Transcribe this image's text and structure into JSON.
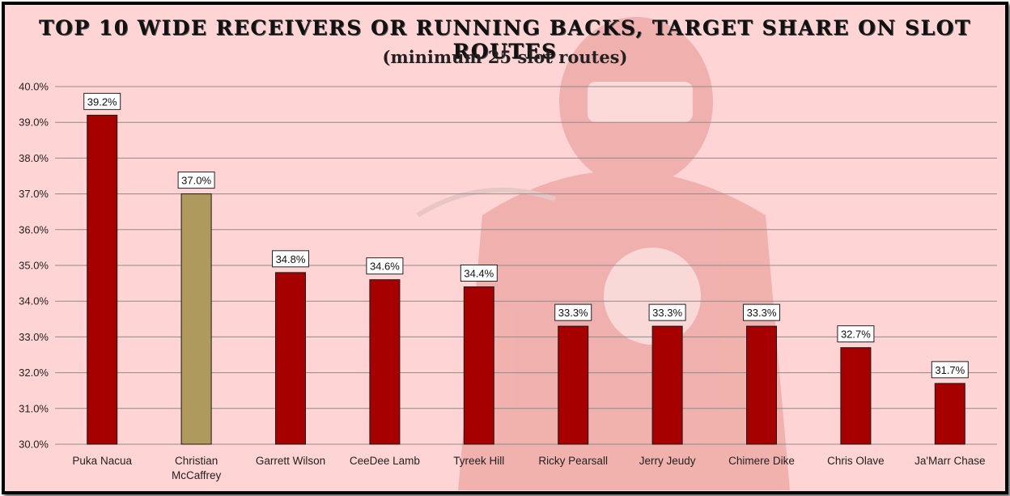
{
  "chart_data": {
    "type": "bar",
    "title": "TOP 10 WIDE RECEIVERS OR RUNNING BACKS, TARGET SHARE ON SLOT ROUTES",
    "subtitle": "(minimum 25 slot routes)",
    "categories": [
      [
        "Puka Nacua"
      ],
      [
        "Christian",
        "McCaffrey"
      ],
      [
        "Garrett Wilson"
      ],
      [
        "CeeDee Lamb"
      ],
      [
        "Tyreek Hill"
      ],
      [
        "Ricky Pearsall"
      ],
      [
        "Jerry Jeudy"
      ],
      [
        "Chimere Dike"
      ],
      [
        "Chris Olave"
      ],
      [
        "Ja'Marr Chase"
      ]
    ],
    "values": [
      39.2,
      37.0,
      34.8,
      34.6,
      34.4,
      33.3,
      33.3,
      33.3,
      32.7,
      31.7
    ],
    "data_labels": [
      "39.2%",
      "37.0%",
      "34.8%",
      "34.6%",
      "34.4%",
      "33.3%",
      "33.3%",
      "33.3%",
      "32.7%",
      "31.7%"
    ],
    "highlight_index": 1,
    "colors": {
      "default": "#a60000",
      "highlight": "#ad9a5c",
      "grid": "#8c8c8c",
      "background": "#ffd4d4"
    },
    "ylim": [
      30,
      40
    ],
    "yticks": [
      "30.0%",
      "31.0%",
      "32.0%",
      "33.0%",
      "34.0%",
      "35.0%",
      "36.0%",
      "37.0%",
      "38.0%",
      "39.0%",
      "40.0%"
    ],
    "grid": true,
    "legend": "none",
    "xlabel": "",
    "ylabel": ""
  }
}
